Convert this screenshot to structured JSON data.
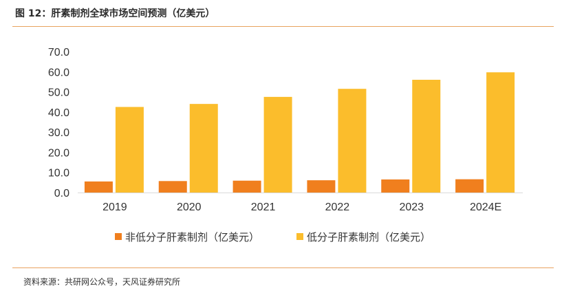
{
  "figure": {
    "title": "图 12：肝素制剂全球市场空间预测（亿美元）",
    "source": "资料来源：共研网公众号，天风证券研究所"
  },
  "chart_data": {
    "type": "bar",
    "categories": [
      "2019",
      "2020",
      "2021",
      "2022",
      "2023",
      "2024E"
    ],
    "series": [
      {
        "name": "非低分子肝素制剂（亿美元）",
        "color": "#f07f1e",
        "values": [
          5.5,
          5.7,
          5.9,
          6.1,
          6.5,
          6.6
        ]
      },
      {
        "name": "低分子肝素制剂（亿美元）",
        "color": "#fbbd2c",
        "values": [
          42.5,
          44.0,
          47.5,
          51.5,
          56.0,
          59.7
        ]
      }
    ],
    "yticks": [
      "0.0",
      "10.0",
      "20.0",
      "30.0",
      "40.0",
      "50.0",
      "60.0",
      "70.0"
    ],
    "ylim": [
      0,
      70
    ],
    "grid": false,
    "legend_position": "bottom",
    "axis_color": "#d9d9d9"
  }
}
